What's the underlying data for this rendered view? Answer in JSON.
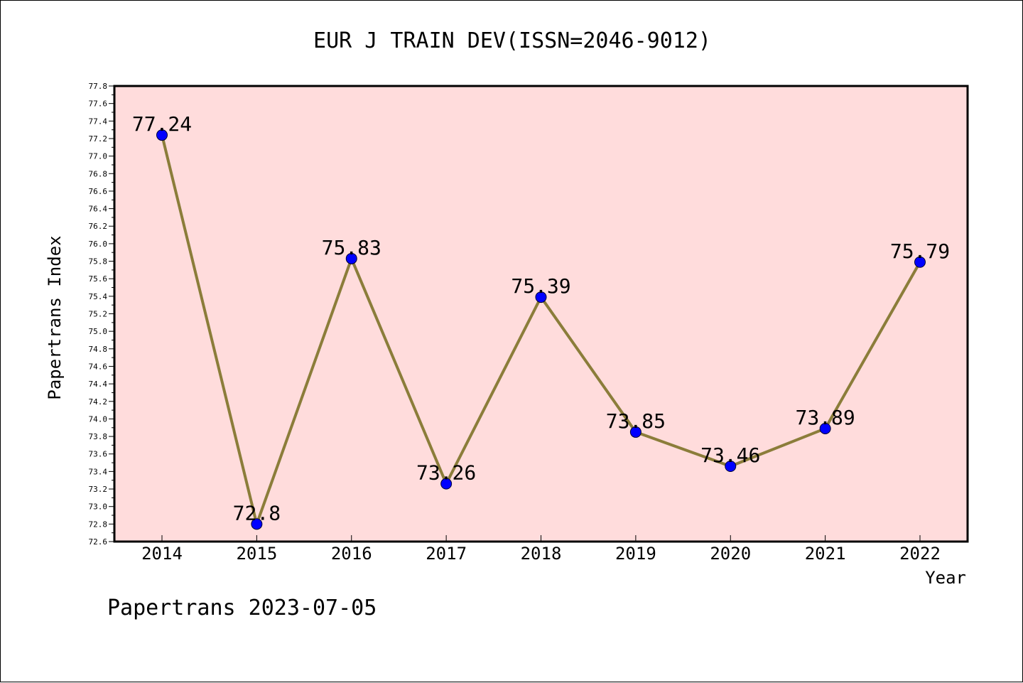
{
  "chart_data": {
    "type": "line",
    "title": "EUR J TRAIN DEV(ISSN=2046-9012)",
    "xlabel": "Year",
    "ylabel": "Papertrans Index",
    "categories": [
      "2014",
      "2015",
      "2016",
      "2017",
      "2018",
      "2019",
      "2020",
      "2021",
      "2022"
    ],
    "series": [
      {
        "values": [
          77.24,
          72.8,
          75.83,
          73.26,
          75.39,
          73.85,
          73.46,
          73.89,
          75.79
        ],
        "labels": [
          "77.24",
          "72.8",
          "75.83",
          "73.26",
          "75.39",
          "73.85",
          "73.46",
          "73.89",
          "75.79"
        ]
      }
    ],
    "ylim": [
      72.6,
      77.8
    ],
    "yticks": [
      "72.6",
      "72.8",
      "73.0",
      "73.2",
      "73.4",
      "73.6",
      "73.8",
      "74.0",
      "74.2",
      "74.4",
      "74.6",
      "74.8",
      "75.0",
      "75.2",
      "75.4",
      "75.6",
      "75.8",
      "76.0",
      "76.2",
      "76.4",
      "76.6",
      "76.8",
      "77.0",
      "77.2",
      "77.4",
      "77.6",
      "77.8"
    ],
    "grid": false,
    "legend": "none",
    "colors": {
      "plot_background": "#ffdcdc",
      "line": "#8b7d3a",
      "marker": "#0000ff"
    }
  },
  "footer": "Papertrans 2023-07-05"
}
